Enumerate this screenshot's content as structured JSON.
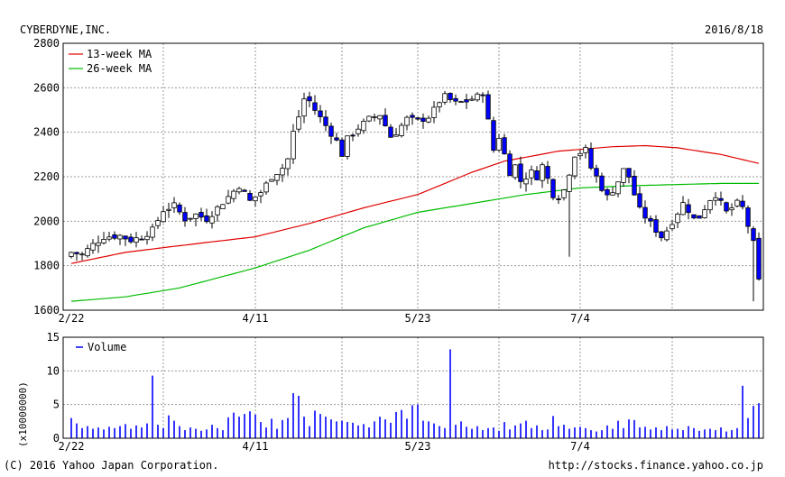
{
  "header": {
    "company": "CYBERDYNE,INC.",
    "date": "2016/8/18"
  },
  "footer": {
    "copyright": "(C) 2016 Yahoo Japan Corporation.",
    "url": "http://stocks.finance.yahoo.co.jp"
  },
  "colors": {
    "up_candle": "#ffffff",
    "down_candle": "#0000ff",
    "ma13": "#e00000",
    "ma26": "#00bb00",
    "volume": "#0000ff",
    "grid": "#999999"
  },
  "chart_data": [
    {
      "type": "candlestick",
      "title": "CYBERDYNE,INC.",
      "date": "2016/8/18",
      "x_tick_labels": [
        "2/22",
        "4/11",
        "5/23",
        "7/4"
      ],
      "x_tick_positions": [
        0,
        34,
        64,
        94
      ],
      "n_days": 128,
      "ylim": [
        1600,
        2800
      ],
      "y_ticks": [
        1600,
        1800,
        2000,
        2200,
        2400,
        2600,
        2800
      ],
      "legend": [
        "13-week MA",
        "26-week MA"
      ],
      "grid": true,
      "close_anchors": [
        [
          0,
          1860
        ],
        [
          2,
          1850
        ],
        [
          4,
          1895
        ],
        [
          6,
          1930
        ],
        [
          9,
          1935
        ],
        [
          11,
          1915
        ],
        [
          13,
          1930
        ],
        [
          15,
          1960
        ],
        [
          17,
          2050
        ],
        [
          19,
          2070
        ],
        [
          21,
          2010
        ],
        [
          23,
          2030
        ],
        [
          25,
          2010
        ],
        [
          27,
          2060
        ],
        [
          29,
          2110
        ],
        [
          31,
          2160
        ],
        [
          33,
          2090
        ],
        [
          35,
          2130
        ],
        [
          37,
          2200
        ],
        [
          39,
          2240
        ],
        [
          40,
          2280
        ],
        [
          41,
          2400
        ],
        [
          42,
          2470
        ],
        [
          43,
          2550
        ],
        [
          44,
          2540
        ],
        [
          45,
          2500
        ],
        [
          47,
          2430
        ],
        [
          49,
          2360
        ],
        [
          50,
          2300
        ],
        [
          51,
          2370
        ],
        [
          53,
          2420
        ],
        [
          55,
          2460
        ],
        [
          57,
          2480
        ],
        [
          58,
          2430
        ],
        [
          59,
          2380
        ],
        [
          60,
          2400
        ],
        [
          62,
          2460
        ],
        [
          64,
          2450
        ],
        [
          66,
          2470
        ],
        [
          67,
          2500
        ],
        [
          68,
          2540
        ],
        [
          69,
          2560
        ],
        [
          71,
          2530
        ],
        [
          73,
          2540
        ],
        [
          75,
          2560
        ],
        [
          76,
          2580
        ],
        [
          77,
          2450
        ],
        [
          78,
          2320
        ],
        [
          79,
          2380
        ],
        [
          80,
          2300
        ],
        [
          81,
          2220
        ],
        [
          82,
          2250
        ],
        [
          83,
          2180
        ],
        [
          85,
          2220
        ],
        [
          86,
          2200
        ],
        [
          87,
          2250
        ],
        [
          88,
          2190
        ],
        [
          89,
          2120
        ],
        [
          90,
          2110
        ],
        [
          91,
          2140
        ],
        [
          92,
          2220
        ],
        [
          93,
          2300
        ],
        [
          95,
          2320
        ],
        [
          96,
          2240
        ],
        [
          97,
          2200
        ],
        [
          98,
          2150
        ],
        [
          99,
          2110
        ],
        [
          100,
          2140
        ],
        [
          101,
          2180
        ],
        [
          102,
          2230
        ],
        [
          103,
          2200
        ],
        [
          104,
          2120
        ],
        [
          105,
          2050
        ],
        [
          106,
          2020
        ],
        [
          107,
          1990
        ],
        [
          108,
          1960
        ],
        [
          109,
          1930
        ],
        [
          110,
          1960
        ],
        [
          111,
          2000
        ],
        [
          112,
          2040
        ],
        [
          113,
          2080
        ],
        [
          114,
          2050
        ],
        [
          115,
          2010
        ],
        [
          116,
          2020
        ],
        [
          117,
          2060
        ],
        [
          118,
          2100
        ],
        [
          119,
          2120
        ],
        [
          120,
          2080
        ],
        [
          121,
          2040
        ],
        [
          122,
          2060
        ],
        [
          123,
          2080
        ],
        [
          124,
          2060
        ],
        [
          125,
          1980
        ],
        [
          126,
          1900
        ],
        [
          127,
          1730
        ]
      ],
      "ma13": [
        [
          0,
          1810
        ],
        [
          10,
          1860
        ],
        [
          20,
          1890
        ],
        [
          34,
          1930
        ],
        [
          44,
          1990
        ],
        [
          54,
          2060
        ],
        [
          64,
          2120
        ],
        [
          74,
          2220
        ],
        [
          80,
          2270
        ],
        [
          90,
          2315
        ],
        [
          100,
          2335
        ],
        [
          106,
          2340
        ],
        [
          112,
          2330
        ],
        [
          120,
          2300
        ],
        [
          127,
          2260
        ]
      ],
      "ma26": [
        [
          0,
          1640
        ],
        [
          10,
          1660
        ],
        [
          20,
          1700
        ],
        [
          34,
          1790
        ],
        [
          44,
          1870
        ],
        [
          54,
          1970
        ],
        [
          64,
          2040
        ],
        [
          74,
          2080
        ],
        [
          84,
          2120
        ],
        [
          94,
          2150
        ],
        [
          104,
          2160
        ],
        [
          112,
          2165
        ],
        [
          120,
          2170
        ],
        [
          127,
          2170
        ]
      ]
    },
    {
      "type": "bar",
      "series": [
        {
          "name": "Volume"
        }
      ],
      "x_tick_labels": [
        "2/22",
        "4/11",
        "5/23",
        "7/4"
      ],
      "y_axis_label": "(x10000000)",
      "ylim": [
        0,
        15
      ],
      "y_ticks": [
        0,
        5,
        10,
        15
      ],
      "volume_spikes": [
        [
          15,
          9.3
        ],
        [
          41,
          6.7
        ],
        [
          42,
          6.3
        ],
        [
          70,
          13.2
        ],
        [
          124,
          7.8
        ],
        [
          127,
          5.2
        ]
      ],
      "volume_base": [
        3.0,
        2.2,
        1.5,
        1.8,
        1.4,
        1.6,
        1.3,
        1.7,
        1.5,
        1.8,
        2.1,
        1.4,
        1.9,
        1.6,
        2.2,
        9.3,
        2.0,
        1.5,
        3.4,
        2.6,
        1.8,
        1.2,
        1.6,
        1.4,
        1.1,
        1.3,
        2.0,
        1.5,
        1.2,
        3.1,
        3.8,
        3.2,
        3.6,
        4.0,
        3.5,
        2.4,
        1.6,
        2.9,
        1.4,
        2.7,
        3.0,
        6.7,
        6.3,
        3.2,
        1.8,
        4.1,
        3.6,
        3.2,
        2.8,
        2.5,
        2.6,
        2.4,
        2.3,
        1.9,
        2.1,
        1.6,
        2.5,
        3.2,
        2.8,
        2.3,
        3.9,
        4.2,
        2.9,
        4.9,
        5.0,
        2.6,
        2.5,
        2.2,
        1.8,
        1.5,
        13.2,
        2.0,
        2.5,
        1.7,
        1.4,
        1.8,
        1.2,
        1.5,
        1.6,
        1.1,
        2.4,
        1.3,
        1.9,
        2.2,
        2.6,
        1.5,
        1.9,
        1.2,
        1.3,
        3.3,
        1.8,
        2.0,
        1.4,
        1.6,
        1.7,
        1.5,
        1.2,
        1.0,
        1.2,
        1.9,
        1.4,
        2.6,
        1.5,
        2.8,
        2.7,
        1.6,
        1.7,
        1.3,
        1.6,
        1.2,
        1.8,
        1.3,
        1.4,
        1.2,
        1.8,
        1.5,
        1.1,
        1.3,
        1.4,
        1.2,
        1.6,
        1.0,
        1.2,
        1.5,
        7.8,
        3.0,
        4.8,
        5.2
      ]
    }
  ]
}
